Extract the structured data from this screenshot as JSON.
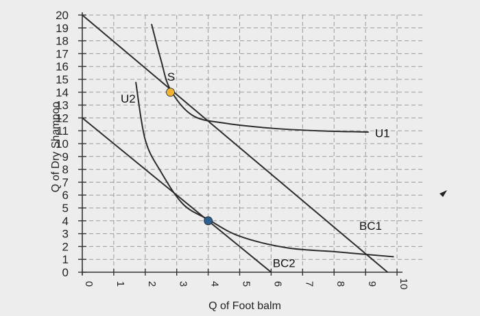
{
  "chart_data": {
    "type": "line",
    "xlabel": "Q of Foot balm",
    "ylabel": "Q of Dry Shampoo",
    "xlim": [
      0,
      10
    ],
    "ylim": [
      0,
      20
    ],
    "x_ticks": [
      "0",
      "1",
      "2",
      "3",
      "4",
      "5",
      "6",
      "7",
      "8",
      "9",
      "10"
    ],
    "y_ticks": [
      "0",
      "1",
      "2",
      "3",
      "4",
      "5",
      "6",
      "7",
      "8",
      "9",
      "10",
      "11",
      "12",
      "13",
      "14",
      "15",
      "16",
      "17",
      "18",
      "19",
      "20"
    ],
    "grid": true,
    "series": [
      {
        "name": "BC1",
        "kind": "line",
        "color": "#2b2b2b",
        "points": [
          [
            0,
            20
          ],
          [
            9.7,
            0
          ]
        ]
      },
      {
        "name": "BC2",
        "kind": "line",
        "color": "#2b2b2b",
        "points": [
          [
            0,
            12
          ],
          [
            6,
            0
          ]
        ]
      },
      {
        "name": "U1",
        "kind": "curve",
        "color": "#2b2b2b",
        "points": [
          [
            2.2,
            19.3
          ],
          [
            2.5,
            16.5
          ],
          [
            2.8,
            14.2
          ],
          [
            3.5,
            12.2
          ],
          [
            4.5,
            11.6
          ],
          [
            6,
            11.2
          ],
          [
            7.5,
            11
          ],
          [
            9.1,
            10.9
          ]
        ]
      },
      {
        "name": "U2",
        "kind": "curve",
        "color": "#2b2b2b",
        "points": [
          [
            1.7,
            14.8
          ],
          [
            2,
            10.3
          ],
          [
            2.5,
            7.8
          ],
          [
            3.2,
            5.3
          ],
          [
            4,
            4.1
          ],
          [
            5,
            2.8
          ],
          [
            6.5,
            1.9
          ],
          [
            8,
            1.6
          ],
          [
            9.9,
            1.2
          ]
        ]
      }
    ],
    "points": [
      {
        "label": "S",
        "x": 2.8,
        "y": 14,
        "color": "#f2b233"
      },
      {
        "label": "",
        "x": 4,
        "y": 4,
        "color": "#2f5f8f"
      }
    ],
    "annotations": [
      "S",
      "U1",
      "U2",
      "BC1",
      "BC2"
    ]
  }
}
